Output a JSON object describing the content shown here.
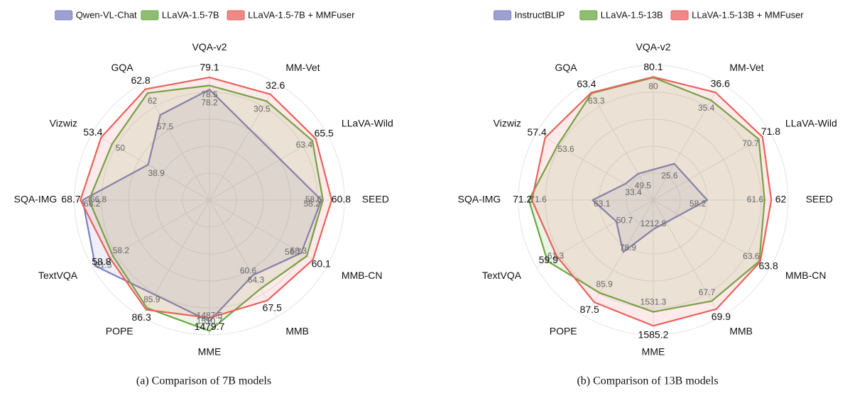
{
  "chart_data": [
    {
      "type": "radar",
      "caption": "(a)  Comparison of 7B models",
      "legend": "top",
      "categories": [
        "VQA-v2",
        "MM-Vet",
        "LLaVA-Wild",
        "SEED",
        "MMB-CN",
        "MMB",
        "MME",
        "POPE",
        "TextVQA",
        "SQA-IMG",
        "Vizwiz",
        "GQA"
      ],
      "rlims": [
        [
          70,
          80
        ],
        [
          0,
          36
        ],
        [
          0,
          72
        ],
        [
          30,
          64
        ],
        [
          30,
          64
        ],
        [
          40,
          72
        ],
        [
          1200,
          1520
        ],
        [
          60,
          88
        ],
        [
          40,
          62
        ],
        [
          40,
          70
        ],
        [
          20,
          56
        ],
        [
          40,
          64
        ]
      ],
      "series": [
        {
          "name": "Qwen-VL-Chat",
          "color": "#7c80c2",
          "values": [
            78.2,
            null,
            null,
            58.2,
            56.7,
            60.6,
            1487.5,
            null,
            61.5,
            68.2,
            38.9,
            57.5
          ]
        },
        {
          "name": "LLaVA-1.5-7B",
          "color": "#6aa843",
          "values": [
            78.5,
            30.5,
            63.4,
            58.6,
            58.3,
            64.3,
            1510.7,
            85.9,
            58.2,
            66.8,
            50,
            62
          ]
        },
        {
          "name": "LLaVA-1.5-7B + MMFuser",
          "color": "#e8625c",
          "values": [
            79.1,
            32.6,
            65.5,
            60.8,
            60.1,
            67.5,
            1479.7,
            86.3,
            58.8,
            68.7,
            53.4,
            62.8
          ]
        }
      ]
    },
    {
      "type": "radar",
      "caption": "(b)  Comparison of 13B models",
      "legend": "top",
      "categories": [
        "VQA-v2",
        "MM-Vet",
        "LLaVA-Wild",
        "SEED",
        "MMB-CN",
        "MMB",
        "MME",
        "POPE",
        "TextVQA",
        "SQA-IMG",
        "Vizwiz",
        "GQA"
      ],
      "rlims": [
        [
          60,
          82
        ],
        [
          20,
          38
        ],
        [
          40,
          74
        ],
        [
          55,
          63
        ],
        [
          40,
          66
        ],
        [
          40,
          72
        ],
        [
          1100,
          1620
        ],
        [
          70,
          90
        ],
        [
          45,
          63
        ],
        [
          55,
          73
        ],
        [
          25,
          60
        ],
        [
          45,
          65
        ]
      ],
      "series": [
        {
          "name": "InstructBLIP",
          "color": "#7c80c2",
          "values": [
            null,
            25.6,
            null,
            58.2,
            null,
            null,
            1212.8,
            78.9,
            50.7,
            63.1,
            33.4,
            49.5
          ]
        },
        {
          "name": "LLaVA-1.5-13B",
          "color": "#6aa843",
          "values": [
            80,
            35.4,
            70.7,
            61.6,
            63.6,
            67.7,
            1531.3,
            85.9,
            61.3,
            71.6,
            53.6,
            63.3
          ]
        },
        {
          "name": "LLaVA-1.5-13B + MMFuser",
          "color": "#e8625c",
          "values": [
            80.1,
            36.6,
            71.8,
            62,
            63.8,
            69.9,
            1585.2,
            87.5,
            59.9,
            71.2,
            57.4,
            63.4
          ]
        }
      ]
    }
  ]
}
